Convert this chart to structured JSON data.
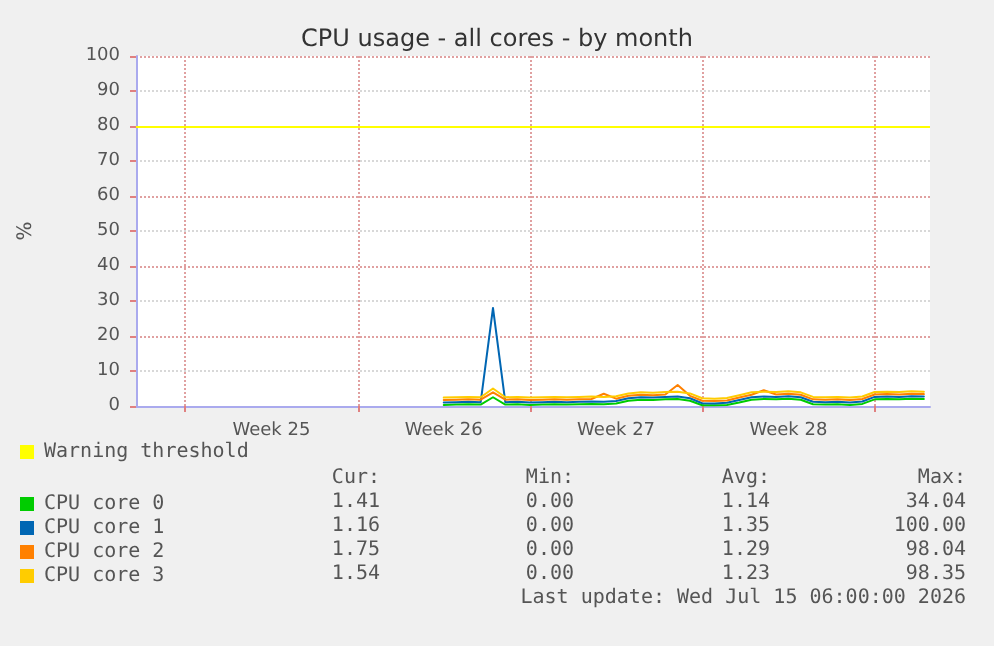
{
  "chart_data": {
    "type": "line",
    "title": "CPU usage - all cores - by month",
    "ylabel": "%",
    "x": [
      "2026-06-25T12:00",
      "2026-06-26T00:00",
      "2026-06-26T12:00",
      "2026-06-27T00:00",
      "2026-06-27T12:00",
      "2026-06-28T00:00",
      "2026-06-28T12:00",
      "2026-06-29T00:00",
      "2026-06-29T12:00",
      "2026-06-30T00:00",
      "2026-06-30T12:00",
      "2026-07-01T00:00",
      "2026-07-01T12:00",
      "2026-07-02T00:00",
      "2026-07-02T12:00",
      "2026-07-03T00:00",
      "2026-07-03T12:00",
      "2026-07-04T00:00",
      "2026-07-04T12:00",
      "2026-07-05T00:00",
      "2026-07-05T12:00",
      "2026-07-06T00:00",
      "2026-07-06T12:00",
      "2026-07-07T00:00",
      "2026-07-07T12:00",
      "2026-07-08T00:00",
      "2026-07-08T12:00",
      "2026-07-09T00:00",
      "2026-07-09T12:00",
      "2026-07-10T00:00",
      "2026-07-10T12:00",
      "2026-07-11T00:00",
      "2026-07-11T12:00",
      "2026-07-12T00:00",
      "2026-07-12T12:00",
      "2026-07-13T00:00",
      "2026-07-13T12:00",
      "2026-07-14T00:00",
      "2026-07-14T12:00",
      "2026-07-15T00:00"
    ],
    "series": [
      {
        "name": "CPU core 0",
        "color": "#00cc00",
        "values": [
          0.3,
          0.4,
          0.5,
          0.4,
          2.5,
          0.4,
          0.5,
          0.3,
          0.4,
          0.5,
          0.4,
          0.5,
          0.6,
          0.5,
          0.7,
          1.5,
          1.8,
          1.7,
          1.9,
          2.0,
          1.5,
          0.2,
          0.2,
          0.3,
          1.0,
          1.8,
          2.0,
          1.9,
          2.1,
          1.8,
          0.5,
          0.4,
          0.5,
          0.3,
          0.6,
          1.9,
          2.0,
          1.9,
          2.1,
          2.0
        ]
      },
      {
        "name": "CPU core 1",
        "color": "#0066b3",
        "values": [
          1.0,
          1.1,
          1.2,
          1.1,
          28.0,
          1.1,
          1.2,
          1.0,
          1.1,
          1.2,
          1.1,
          1.2,
          1.3,
          1.2,
          1.4,
          2.2,
          2.5,
          2.4,
          2.6,
          2.7,
          2.2,
          0.8,
          0.7,
          0.9,
          1.7,
          2.5,
          2.7,
          2.6,
          2.8,
          2.5,
          1.2,
          1.1,
          1.2,
          1.0,
          1.3,
          2.6,
          2.7,
          2.6,
          2.8,
          2.7
        ]
      },
      {
        "name": "CPU core 2",
        "color": "#ff8000",
        "values": [
          1.7,
          1.8,
          1.9,
          1.8,
          3.9,
          1.8,
          1.9,
          1.7,
          1.8,
          1.9,
          1.8,
          1.9,
          2.0,
          3.5,
          2.1,
          2.9,
          3.2,
          3.1,
          3.3,
          6.0,
          2.9,
          1.5,
          1.4,
          1.6,
          2.4,
          3.2,
          4.5,
          3.3,
          3.5,
          3.2,
          1.9,
          1.8,
          1.9,
          1.7,
          2.0,
          3.3,
          3.4,
          3.3,
          3.5,
          3.4
        ]
      },
      {
        "name": "CPU core 3",
        "color": "#ffcc00",
        "values": [
          2.4,
          2.5,
          2.6,
          2.5,
          5.0,
          2.5,
          2.6,
          2.4,
          2.5,
          2.6,
          2.5,
          2.6,
          2.7,
          2.6,
          2.8,
          3.6,
          3.9,
          3.8,
          4.0,
          4.1,
          3.6,
          2.2,
          2.1,
          2.3,
          3.1,
          3.9,
          4.1,
          4.0,
          4.2,
          3.9,
          2.6,
          2.5,
          2.6,
          2.4,
          2.7,
          4.0,
          4.1,
          4.0,
          4.2,
          4.1
        ]
      }
    ],
    "xlim": [
      "2026-06-13",
      "2026-07-15T06:00"
    ],
    "xticks": [
      {
        "value": "2026-06-15",
        "label": null
      },
      {
        "value": "2026-06-22",
        "label": null
      },
      {
        "value": "2026-06-29",
        "label": null
      },
      {
        "value": "2026-07-06",
        "label": null
      },
      {
        "value": "2026-07-13",
        "label": null
      },
      {
        "value": "2026-06-18T12:00",
        "label": "Week 25"
      },
      {
        "value": "2026-06-25T12:00",
        "label": "Week 26"
      },
      {
        "value": "2026-07-02T12:00",
        "label": "Week 27"
      },
      {
        "value": "2026-07-09T12:00",
        "label": "Week 28"
      }
    ],
    "ylim": [
      0,
      100
    ],
    "yticks": [
      0,
      10,
      20,
      30,
      40,
      50,
      60,
      70,
      80,
      90,
      100
    ],
    "ref_lines": [
      {
        "axis": "y",
        "value": 80,
        "label": "Warning threshold",
        "color": "#ffff00"
      }
    ],
    "grid": true,
    "legend": "bottom",
    "marker": "none",
    "line_style": "solid",
    "annotations": [
      "Cur:",
      "Min:",
      "Avg:",
      "Max:",
      "1.41",
      "0.00",
      "1.14",
      "34.04",
      "1.16",
      "0.00",
      "1.35",
      "100.00",
      "1.75",
      "0.00",
      "1.29",
      "98.04",
      "1.54",
      "0.00",
      "1.23",
      "98.35",
      "Last update: Wed Jul 15 06:00:00 2026"
    ]
  }
}
